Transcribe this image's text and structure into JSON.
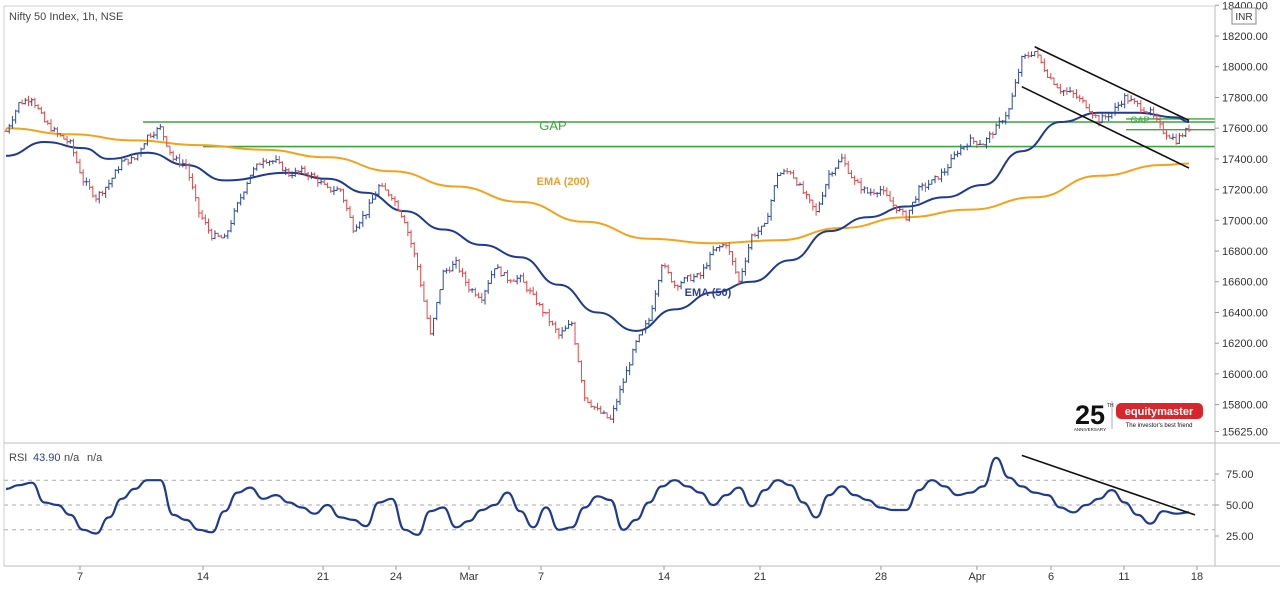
{
  "chart_data": [
    {
      "type": "candlestick",
      "title": "Nifty 50 Index, 1h, NSE",
      "currency": "INR",
      "ylim": [
        15520,
        18420
      ],
      "y_ticks": [
        "18400.00",
        "18200.00",
        "18000.00",
        "17800.00",
        "17600.00",
        "17400.00",
        "17200.00",
        "17000.00",
        "16800.00",
        "16600.00",
        "16400.00",
        "16200.00",
        "16000.00",
        "15800.00",
        "15625.00"
      ],
      "x_ticks": [
        "7",
        "14",
        "21",
        "24",
        "Mar",
        "7",
        "14",
        "21",
        "28",
        "Apr",
        "6",
        "11",
        "18"
      ],
      "price_path": [
        [
          0,
          17580
        ],
        [
          1,
          17760
        ],
        [
          2,
          17800
        ],
        [
          3,
          17640
        ],
        [
          4,
          17560
        ],
        [
          5,
          17500
        ],
        [
          6,
          17260
        ],
        [
          7,
          17150
        ],
        [
          8,
          17240
        ],
        [
          9,
          17380
        ],
        [
          10,
          17400
        ],
        [
          11,
          17550
        ],
        [
          12,
          17600
        ],
        [
          13,
          17400
        ],
        [
          14,
          17360
        ],
        [
          15,
          17050
        ],
        [
          16,
          16900
        ],
        [
          17,
          16880
        ],
        [
          18,
          17100
        ],
        [
          19,
          17300
        ],
        [
          20,
          17400
        ],
        [
          21,
          17380
        ],
        [
          22,
          17300
        ],
        [
          23,
          17320
        ],
        [
          24,
          17280
        ],
        [
          25,
          17200
        ],
        [
          26,
          17200
        ],
        [
          27,
          16950
        ],
        [
          28,
          17050
        ],
        [
          29,
          17220
        ],
        [
          30,
          17160
        ],
        [
          31,
          17000
        ],
        [
          32,
          16700
        ],
        [
          33,
          16250
        ],
        [
          34,
          16660
        ],
        [
          35,
          16720
        ],
        [
          36,
          16560
        ],
        [
          37,
          16500
        ],
        [
          38,
          16700
        ],
        [
          39,
          16620
        ],
        [
          40,
          16620
        ],
        [
          41,
          16500
        ],
        [
          42,
          16380
        ],
        [
          43,
          16250
        ],
        [
          44,
          16330
        ],
        [
          45,
          15850
        ],
        [
          46,
          15760
        ],
        [
          47,
          15700
        ],
        [
          48,
          15950
        ],
        [
          49,
          16200
        ],
        [
          50,
          16350
        ],
        [
          51,
          16720
        ],
        [
          52,
          16580
        ],
        [
          53,
          16620
        ],
        [
          54,
          16640
        ],
        [
          55,
          16800
        ],
        [
          56,
          16850
        ],
        [
          57,
          16600
        ],
        [
          58,
          16900
        ],
        [
          59,
          16960
        ],
        [
          60,
          17300
        ],
        [
          61,
          17320
        ],
        [
          62,
          17180
        ],
        [
          63,
          17050
        ],
        [
          64,
          17300
        ],
        [
          65,
          17400
        ],
        [
          66,
          17250
        ],
        [
          67,
          17180
        ],
        [
          68,
          17200
        ],
        [
          69,
          17100
        ],
        [
          70,
          17020
        ],
        [
          71,
          17200
        ],
        [
          72,
          17250
        ],
        [
          73,
          17320
        ],
        [
          74,
          17450
        ],
        [
          75,
          17520
        ],
        [
          76,
          17500
        ],
        [
          77,
          17600
        ],
        [
          78,
          17720
        ],
        [
          79,
          18050
        ],
        [
          80,
          18100
        ],
        [
          81,
          17950
        ],
        [
          82,
          17850
        ],
        [
          83,
          17820
        ],
        [
          84,
          17750
        ],
        [
          85,
          17650
        ],
        [
          86,
          17700
        ],
        [
          87,
          17800
        ],
        [
          88,
          17750
        ],
        [
          89,
          17700
        ],
        [
          90,
          17580
        ],
        [
          91,
          17520
        ],
        [
          92,
          17600
        ]
      ],
      "gap_band": {
        "label": "GAP",
        "upper": 17640,
        "lower": 17480
      },
      "gap_band_2": {
        "label": "GAP",
        "upper": 17660,
        "lower": 17590
      },
      "ema_50": {
        "label": "EMA (50)",
        "values": [
          [
            0,
            17420
          ],
          [
            3,
            17510
          ],
          [
            6,
            17470
          ],
          [
            8,
            17400
          ],
          [
            11,
            17440
          ],
          [
            14,
            17360
          ],
          [
            17,
            17260
          ],
          [
            22,
            17310
          ],
          [
            25,
            17270
          ],
          [
            28,
            17180
          ],
          [
            31,
            17060
          ],
          [
            34,
            16940
          ],
          [
            37,
            16840
          ],
          [
            40,
            16760
          ],
          [
            43,
            16580
          ],
          [
            46,
            16400
          ],
          [
            49,
            16280
          ],
          [
            52,
            16420
          ],
          [
            55,
            16530
          ],
          [
            58,
            16600
          ],
          [
            61,
            16740
          ],
          [
            64,
            16930
          ],
          [
            67,
            17020
          ],
          [
            70,
            17090
          ],
          [
            73,
            17150
          ],
          [
            76,
            17230
          ],
          [
            79,
            17450
          ],
          [
            82,
            17640
          ],
          [
            85,
            17700
          ],
          [
            88,
            17700
          ],
          [
            91,
            17670
          ],
          [
            92,
            17640
          ]
        ]
      },
      "ema_200": {
        "label": "EMA (200)",
        "values": [
          [
            0,
            17600
          ],
          [
            5,
            17560
          ],
          [
            10,
            17520
          ],
          [
            15,
            17490
          ],
          [
            20,
            17460
          ],
          [
            25,
            17410
          ],
          [
            30,
            17320
          ],
          [
            35,
            17220
          ],
          [
            40,
            17120
          ],
          [
            45,
            16990
          ],
          [
            50,
            16880
          ],
          [
            55,
            16850
          ],
          [
            60,
            16870
          ],
          [
            65,
            16950
          ],
          [
            70,
            17020
          ],
          [
            75,
            17070
          ],
          [
            80,
            17150
          ],
          [
            85,
            17290
          ],
          [
            90,
            17360
          ],
          [
            92,
            17370
          ]
        ]
      },
      "channel_upper": [
        [
          80,
          18130
        ],
        [
          92,
          17650
        ]
      ],
      "channel_lower": [
        [
          79,
          17870
        ],
        [
          92,
          17340
        ]
      ]
    },
    {
      "type": "line",
      "title": "RSI",
      "value": "43.90",
      "extra": [
        "n/a",
        "n/a"
      ],
      "ylim": [
        5,
        100
      ],
      "y_ticks": [
        "75.00",
        "50.00",
        "25.00"
      ],
      "guide_levels": [
        70,
        50,
        30
      ],
      "values": [
        63,
        66,
        68,
        52,
        50,
        42,
        30,
        27,
        40,
        55,
        63,
        70,
        70,
        42,
        38,
        30,
        28,
        45,
        60,
        64,
        55,
        58,
        52,
        48,
        43,
        50,
        40,
        38,
        33,
        52,
        55,
        30,
        26,
        45,
        48,
        32,
        37,
        46,
        50,
        60,
        45,
        32,
        48,
        30,
        32,
        48,
        57,
        54,
        30,
        38,
        52,
        65,
        70,
        65,
        60,
        50,
        58,
        64,
        49,
        62,
        70,
        66,
        52,
        40,
        58,
        65,
        58,
        54,
        48,
        46,
        46,
        62,
        70,
        65,
        58,
        60,
        65,
        88,
        72,
        65,
        60,
        58,
        48,
        44,
        50,
        55,
        62,
        52,
        42,
        35,
        45,
        43,
        44
      ],
      "trendline": [
        [
          79,
          90
        ],
        [
          92,
          42
        ]
      ]
    }
  ],
  "watermark": {
    "number": "25",
    "sup": "TH",
    "sub": "ANNIVERSARY",
    "brand": "equitymaster",
    "tagline": "The investor's best friend"
  }
}
